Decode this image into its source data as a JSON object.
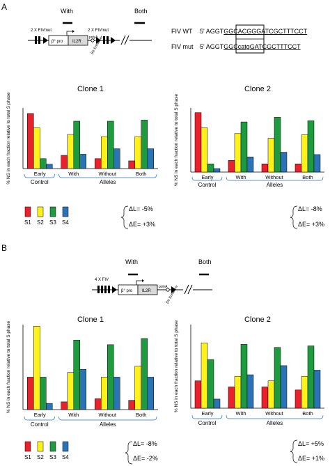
{
  "panels": [
    {
      "letter": "A",
      "construct": {
        "with": "With",
        "both": "Both",
        "fiv_left": "2 X FIVmut",
        "fiv_right": "2 X FIVmut",
        "promoter": "β° pro",
        "gene": "IL2R",
        "polyA": "polyA",
        "enhancer": "β/ε Enhancer"
      },
      "sequences": [
        {
          "label": "FIV WT",
          "prefix": "5' AGGT",
          "pre_box": "GG",
          "box": "CACGGG",
          "post_box": "ATCGCTTTCCT"
        },
        {
          "label": "FIV mut",
          "prefix": "5' AGGT",
          "pre_box": "GG",
          "box": "CcatgG",
          "post_box": "ATCGCTTTCCT"
        }
      ],
      "deltas": {
        "L": "ΔL= -5%",
        "E": "ΔE= +3%"
      }
    },
    {
      "letter": "B",
      "construct": {
        "with": "With",
        "both": "Both",
        "fiv_left": "4 X FIV",
        "promoter": "β° pro",
        "gene": "IL2R",
        "polyA": "polyA",
        "enhancer": "β/ε Enhancer"
      },
      "deltas": {
        "L": "ΔL= -8%",
        "E": "ΔE= -2%"
      }
    }
  ],
  "chart_data": [
    {
      "type": "bar",
      "title": "Clone 1",
      "panel": "A",
      "ylabel": "% NS in each fraction relative to total S phase",
      "categories": [
        "Early",
        "With",
        "Without",
        "Both"
      ],
      "groups": [
        "Control",
        "Alleles"
      ],
      "ylim": [
        0,
        55
      ],
      "series": [
        {
          "name": "S1",
          "values": [
            50,
            12,
            9,
            7
          ]
        },
        {
          "name": "S2",
          "values": [
            37,
            31,
            29,
            29
          ]
        },
        {
          "name": "S3",
          "values": [
            9,
            43,
            43,
            44
          ]
        },
        {
          "name": "S4",
          "values": [
            4,
            13,
            18,
            18
          ]
        }
      ]
    },
    {
      "type": "bar",
      "title": "Clone 2",
      "panel": "A",
      "ylabel": "% NS in each fraction relative to total S phase",
      "categories": [
        "Early",
        "With",
        "Without",
        "Both"
      ],
      "groups": [
        "Control",
        "Alleles"
      ],
      "ylim": [
        0,
        55
      ],
      "series": [
        {
          "name": "S1",
          "values": [
            51,
            10,
            7,
            7
          ]
        },
        {
          "name": "S2",
          "values": [
            38,
            33,
            29,
            32
          ]
        },
        {
          "name": "S3",
          "values": [
            7,
            43,
            47,
            44
          ]
        },
        {
          "name": "S4",
          "values": [
            3,
            13,
            17,
            15
          ]
        }
      ],
      "deltas": {
        "L": "ΔL= -8%",
        "E": "ΔE= +3%"
      }
    },
    {
      "type": "bar",
      "title": "Clone 1",
      "panel": "B",
      "ylabel": "% NS in each fraction relative to total S phase",
      "categories": [
        "Early",
        "With",
        "Without",
        "Both"
      ],
      "groups": [
        "Control",
        "Alleles"
      ],
      "ylim": [
        0,
        55
      ],
      "series": [
        {
          "name": "S1",
          "values": [
            21,
            5,
            7,
            6
          ]
        },
        {
          "name": "S2",
          "values": [
            54,
            24,
            21,
            28
          ]
        },
        {
          "name": "S3",
          "values": [
            21,
            45,
            42,
            46
          ]
        },
        {
          "name": "S4",
          "values": [
            4,
            26,
            21,
            21
          ]
        }
      ]
    },
    {
      "type": "bar",
      "title": "Clone 2",
      "panel": "B",
      "ylabel": "% NS in each fraction relative to total S phase",
      "categories": [
        "Early",
        "With",
        "Without",
        "Both"
      ],
      "groups": [
        "Control",
        "Alleles"
      ],
      "ylim": [
        0,
        55
      ],
      "series": [
        {
          "name": "S1",
          "values": [
            18,
            14,
            14,
            12
          ]
        },
        {
          "name": "S2",
          "values": [
            43,
            21,
            18,
            21
          ]
        },
        {
          "name": "S3",
          "values": [
            32,
            42,
            40,
            41
          ]
        },
        {
          "name": "S4",
          "values": [
            6,
            22,
            28,
            25
          ]
        }
      ],
      "deltas": {
        "L": "ΔL= +5%",
        "E": "ΔE= +1%"
      }
    }
  ],
  "legend": {
    "names": [
      "S1",
      "S2",
      "S3",
      "S4"
    ],
    "colors": [
      "#e8212a",
      "#fff21a",
      "#1f9a3f",
      "#2a73b5"
    ]
  }
}
